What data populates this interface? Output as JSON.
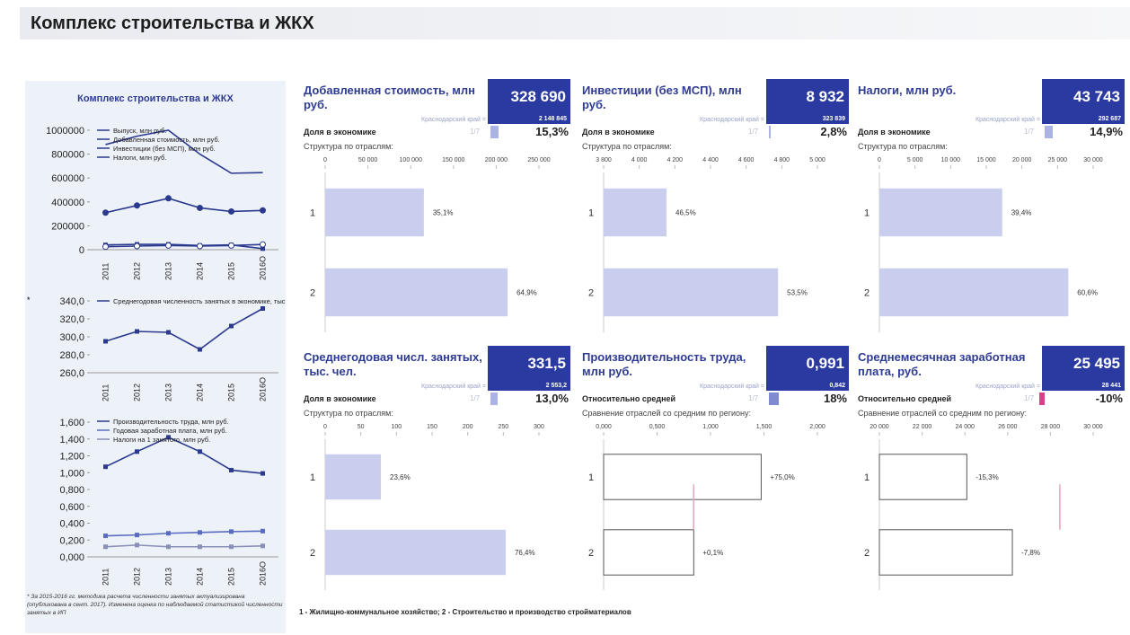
{
  "header": {
    "title": "Комплекс строительства и ЖКХ"
  },
  "left_panel": {
    "title": "Комплекс строительства и ЖКХ",
    "footnote": "* За 2015-2016 гг. методика расчета численности занятых актуализирована (опубликована в сент. 2017). Изменена оценка по наблюдаемой статистикой численности занятых в ИП"
  },
  "chart_data": [
    {
      "type": "line",
      "categories": [
        "2011",
        "2012",
        "2013",
        "2014",
        "2015",
        "2016О"
      ],
      "ylim": [
        0,
        1000000
      ],
      "yticks": [
        0,
        200000,
        400000,
        600000,
        800000,
        1000000
      ],
      "series": [
        {
          "name": "Выпуск, млн руб.",
          "color": "#2b3a8f",
          "marker": "none",
          "values": [
            880000,
            950000,
            1000000,
            800000,
            640000,
            645000
          ]
        },
        {
          "name": "Добавленная стоимость, млн руб.",
          "color": "#2b3a8f",
          "marker": "circle",
          "values": [
            310000,
            370000,
            430000,
            350000,
            320000,
            328690
          ]
        },
        {
          "name": "Инвестиции (без МСП), млн руб.",
          "color": "#2b3a8f",
          "marker": "square",
          "values": [
            40000,
            45000,
            45000,
            35000,
            40000,
            8932
          ]
        },
        {
          "name": "Налоги, млн руб.",
          "color": "#2b3a8f",
          "marker": "circle-open",
          "values": [
            25000,
            30000,
            35000,
            30000,
            35000,
            43743
          ]
        }
      ]
    },
    {
      "type": "line",
      "categories": [
        "2011",
        "2012",
        "2013",
        "2014",
        "2015",
        "2016О"
      ],
      "ylim": [
        260,
        340
      ],
      "yticks": [
        {
          "value": 260,
          "label": "260,0"
        },
        {
          "value": 280,
          "label": "280,0"
        },
        {
          "value": 300,
          "label": "300,0"
        },
        {
          "value": 320,
          "label": "320,0"
        },
        {
          "value": 340,
          "label": "340,0"
        }
      ],
      "annotation": "*",
      "series": [
        {
          "name": "Среднегодовая численность занятых в экономике, тыс. чел",
          "color": "#2b3a8f",
          "marker": "square",
          "values": [
            295,
            306,
            305,
            286,
            312,
            331.5
          ]
        }
      ]
    },
    {
      "type": "line",
      "categories": [
        "2011",
        "2012",
        "2013",
        "2014",
        "2015",
        "2016О"
      ],
      "ylim": [
        0,
        1.6
      ],
      "yticks": [
        {
          "value": 0,
          "label": "0,000"
        },
        {
          "value": 0.2,
          "label": "0,200"
        },
        {
          "value": 0.4,
          "label": "0,400"
        },
        {
          "value": 0.6,
          "label": "0,600"
        },
        {
          "value": 0.8,
          "label": "0,800"
        },
        {
          "value": 1,
          "label": "1,000"
        },
        {
          "value": 1.2,
          "label": "1,200"
        },
        {
          "value": 1.4,
          "label": "1,400"
        },
        {
          "value": 1.6,
          "label": "1,600"
        }
      ],
      "series": [
        {
          "name": "Производительность труда, млн руб.",
          "color": "#2b3a8f",
          "marker": "square",
          "values": [
            1.07,
            1.25,
            1.42,
            1.25,
            1.03,
            0.991
          ]
        },
        {
          "name": "Годовая заработная плата, млн руб.",
          "color": "#5a6cc0",
          "marker": "square",
          "values": [
            0.25,
            0.26,
            0.28,
            0.29,
            0.3,
            0.306
          ]
        },
        {
          "name": "Налоги на 1 занятого, млн руб.",
          "color": "#8890b8",
          "marker": "square",
          "values": [
            0.12,
            0.14,
            0.12,
            0.12,
            0.12,
            0.13
          ]
        }
      ]
    }
  ],
  "cards": [
    {
      "title": "Добавленная стоимость, млн руб.",
      "value": "328 690",
      "region_label": "Краснодарский край =",
      "region_value": "2 148 845",
      "share_title": "Доля в экономике",
      "rank": "1/7",
      "share": 15.3,
      "share_label": "15,3%",
      "share_color": "#aab3e4",
      "subtitle": "Структура по отраслям:",
      "chart": {
        "type": "bar",
        "style": "fill",
        "color": "#c9cdee",
        "categories": [
          "1",
          "2"
        ],
        "values": [
          115370,
          213320
        ],
        "share_labels": [
          "35,1%",
          "64,9%"
        ],
        "xlim": [
          0,
          250000
        ],
        "xticks": [
          0,
          {
            "value": 50000,
            "label": "50 000"
          },
          {
            "value": 100000,
            "label": "100 000"
          },
          {
            "value": 150000,
            "label": "150 000"
          },
          {
            "value": 200000,
            "label": "200 000"
          },
          {
            "value": 250000,
            "label": "250 000"
          }
        ]
      }
    },
    {
      "title": "Инвестиции (без МСП), млн руб.",
      "value": "8 932",
      "region_label": "Краснодарский край =",
      "region_value": "323 839",
      "share_title": "Доля в экономике",
      "rank": "1/7",
      "share": 2.8,
      "share_label": "2,8%",
      "share_color": "#aab3e4",
      "subtitle": "Структура по отраслям:",
      "chart": {
        "type": "bar",
        "style": "fill",
        "color": "#c9cdee",
        "categories": [
          "1",
          "2"
        ],
        "values": [
          4153,
          4779
        ],
        "share_labels": [
          "46,5%",
          "53,5%"
        ],
        "xlim": [
          3800,
          5000
        ],
        "xticks": [
          {
            "value": 3800,
            "label": "3 800"
          },
          {
            "value": 4000,
            "label": "4 000"
          },
          {
            "value": 4200,
            "label": "4 200"
          },
          {
            "value": 4400,
            "label": "4 400"
          },
          {
            "value": 4600,
            "label": "4 600"
          },
          {
            "value": 4800,
            "label": "4 800"
          },
          {
            "value": 5000,
            "label": "5 000"
          }
        ]
      }
    },
    {
      "title": "Налоги, млн руб.",
      "value": "43 743",
      "region_label": "Краснодарский край =",
      "region_value": "292 687",
      "share_title": "Доля в экономике",
      "rank": "1/7",
      "share": 14.9,
      "share_label": "14,9%",
      "share_color": "#aab3e4",
      "subtitle": "Структура по отраслям:",
      "chart": {
        "type": "bar",
        "style": "fill",
        "color": "#c9cdee",
        "categories": [
          "1",
          "2"
        ],
        "values": [
          17235,
          26508
        ],
        "share_labels": [
          "39,4%",
          "60,6%"
        ],
        "xlim": [
          0,
          30000
        ],
        "xticks": [
          0,
          {
            "value": 5000,
            "label": "5 000"
          },
          {
            "value": 10000,
            "label": "10 000"
          },
          {
            "value": 15000,
            "label": "15 000"
          },
          {
            "value": 20000,
            "label": "20 000"
          },
          {
            "value": 25000,
            "label": "25 000"
          },
          {
            "value": 30000,
            "label": "30 000"
          }
        ]
      }
    },
    {
      "title": "Среднегодовая числ. занятых, тыс. чел.",
      "value": "331,5",
      "region_label": "Краснодарский край =",
      "region_value": "2 553,2",
      "share_title": "Доля в экономике",
      "rank": "1/7",
      "share": 13,
      "share_label": "13,0%",
      "share_color": "#aab3e4",
      "subtitle": "Структура по отраслям:",
      "chart": {
        "type": "bar",
        "style": "fill",
        "color": "#c9cdee",
        "categories": [
          "1",
          "2"
        ],
        "values": [
          78.2,
          253.3
        ],
        "share_labels": [
          "23,6%",
          "76,4%"
        ],
        "xlim": [
          0,
          300
        ],
        "xticks": [
          0,
          50,
          100,
          150,
          200,
          250,
          300
        ]
      }
    },
    {
      "title": "Производительность труда, млн руб.",
      "value": "0,991",
      "region_label": "Краснодарский край =",
      "region_value": "0,842",
      "share_title": "Относительно средней",
      "rank": "1/7",
      "share": 18,
      "share_label": "18%",
      "share_color": "#7f8ad0",
      "subtitle": "Сравнение отраслей со средним по региону:",
      "chart": {
        "type": "bar",
        "style": "outline",
        "color": "#555555",
        "reference": 0.842,
        "reference_color": "#e6a3c0",
        "categories": [
          "1",
          "2"
        ],
        "values": [
          1.474,
          0.843
        ],
        "share_labels": [
          "+75,0%",
          "+0,1%"
        ],
        "xlim": [
          0,
          2
        ],
        "xticks": [
          {
            "value": 0,
            "label": "0,000"
          },
          {
            "value": 0.5,
            "label": "0,500"
          },
          {
            "value": 1,
            "label": "1,000"
          },
          {
            "value": 1.5,
            "label": "1,500"
          },
          {
            "value": 2,
            "label": "2,000"
          }
        ]
      }
    },
    {
      "title": "Среднемесячная заработная плата, руб.",
      "value": "25 495",
      "region_label": "Краснодарский край =",
      "region_value": "28 441",
      "share_title": "Относительно средней",
      "rank": "1/7",
      "share": -10,
      "share_label": "-10%",
      "share_color": "#d9408a",
      "subtitle": "Сравнение отраслей со средним по региону:",
      "chart": {
        "type": "bar",
        "style": "outline",
        "color": "#555555",
        "reference": 28441,
        "reference_color": "#e6a3c0",
        "categories": [
          "1",
          "2"
        ],
        "values": [
          24090,
          26220
        ],
        "share_labels": [
          "-15,3%",
          "-7,8%"
        ],
        "xlim": [
          20000,
          30000
        ],
        "xticks": [
          {
            "value": 20000,
            "label": "20 000"
          },
          {
            "value": 22000,
            "label": "22 000"
          },
          {
            "value": 24000,
            "label": "24 000"
          },
          {
            "value": 26000,
            "label": "26 000"
          },
          {
            "value": 28000,
            "label": "28 000"
          },
          {
            "value": 30000,
            "label": "30 000"
          }
        ]
      }
    }
  ],
  "legend": "1 - Жилищно-коммунальное хозяйство; 2 - Строительство и производство стройматериалов"
}
